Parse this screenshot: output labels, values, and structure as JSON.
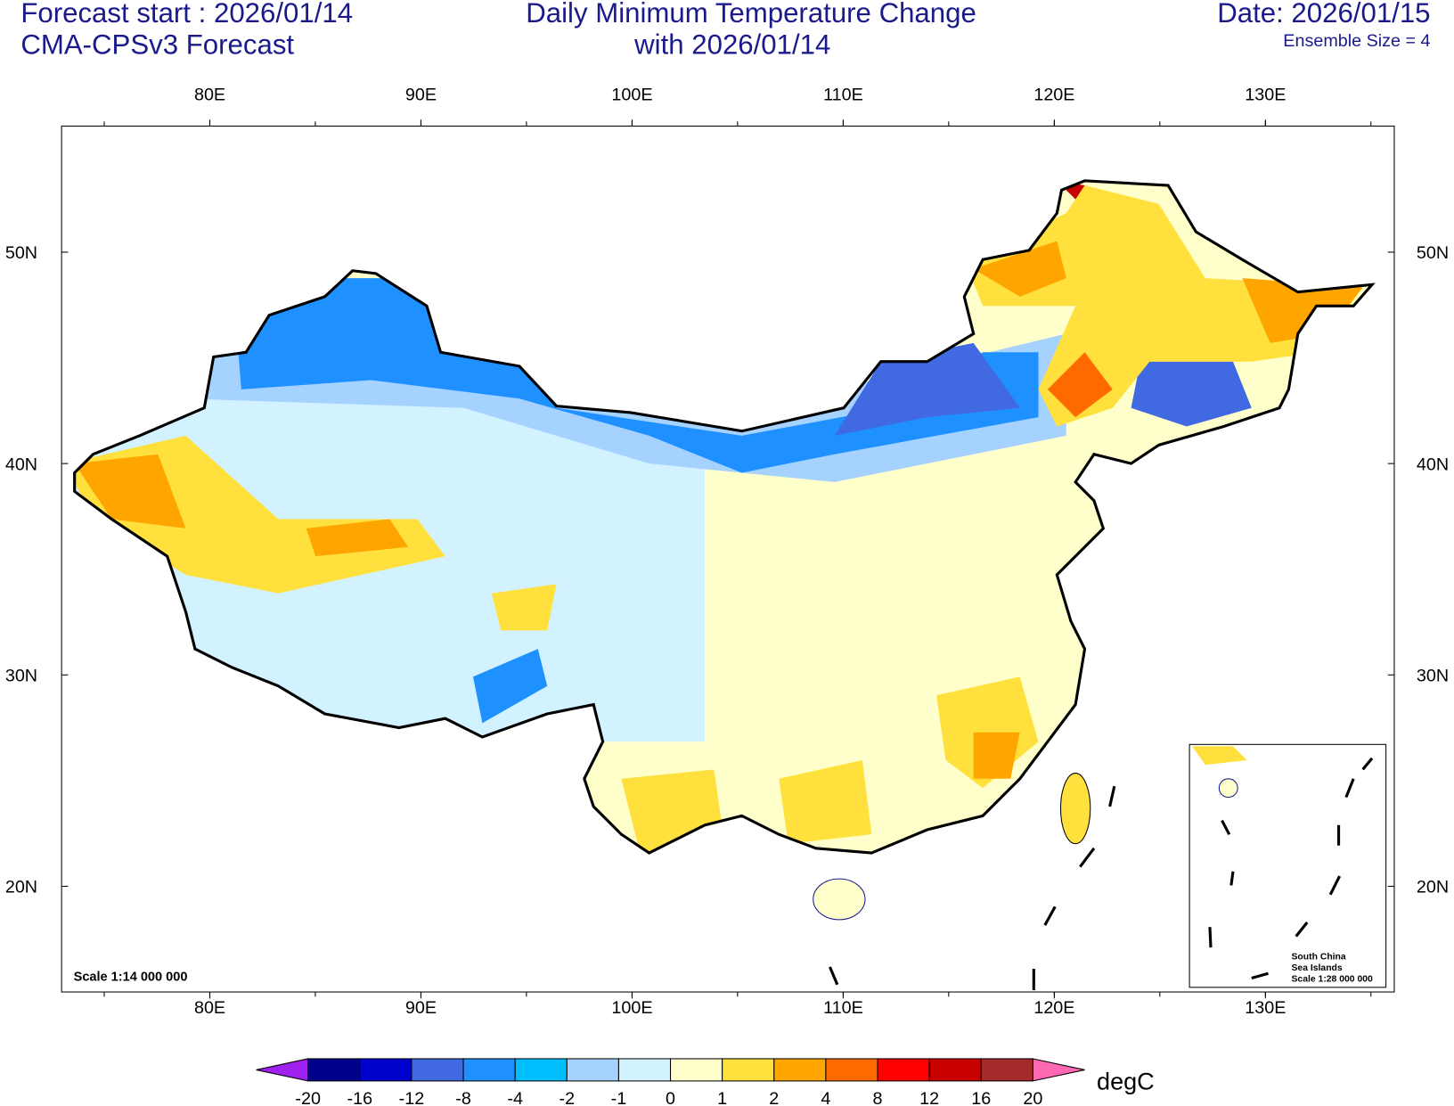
{
  "header": {
    "forecast_start": "Forecast start : 2026/01/14",
    "model": "CMA-CPSv3 Forecast",
    "title": [
      "Daily Minimum Temperature Change",
      "with 2026/01/14"
    ],
    "date": "Date: 2026/01/15",
    "ensemble": "Ensemble Size = 4"
  },
  "map": {
    "lon_labels": [
      "80E",
      "90E",
      "100E",
      "110E",
      "120E",
      "130E"
    ],
    "lat_labels": [
      "50N",
      "40N",
      "30N",
      "20N"
    ],
    "scale": "Scale 1:14 000 000",
    "inset": {
      "lines": [
        "South China",
        "Sea Islands",
        "Scale 1:28 000 000"
      ]
    }
  },
  "colorbar": {
    "levels": [
      -20,
      -16,
      -12,
      -8,
      -4,
      -2,
      -1,
      0,
      1,
      2,
      4,
      8,
      12,
      16,
      20
    ],
    "colors": [
      "#a020f0",
      "#00008b",
      "#0000cd",
      "#4169e1",
      "#1e90ff",
      "#00bfff",
      "#a6d2ff",
      "#d2f2ff",
      "#ffffcc",
      "#ffe03c",
      "#ffa500",
      "#ff6a00",
      "#ff0000",
      "#c80000",
      "#a52a2a",
      "#ff69b4"
    ],
    "unit": "degC"
  }
}
